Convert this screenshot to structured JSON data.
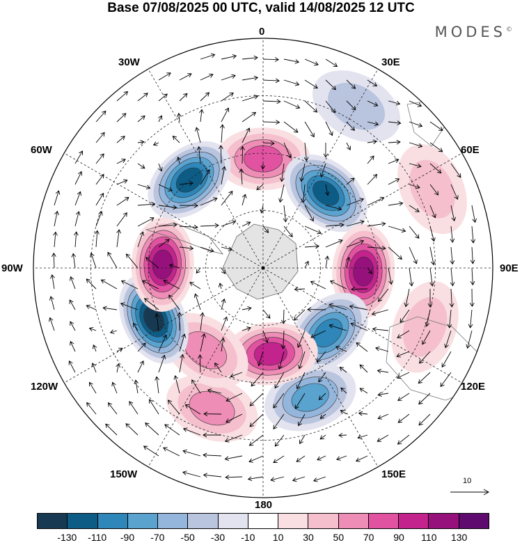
{
  "title": "Base 07/08/2025 00 UTC, valid 14/08/2025 12 UTC",
  "brand": {
    "name": "MODES",
    "mark": "©"
  },
  "meridian_labels": {
    "deg0": "0",
    "e30": "30E",
    "e60": "60E",
    "e90": "90E",
    "e120": "120E",
    "e150": "150E",
    "deg180": "180",
    "w150": "150W",
    "w120": "120W",
    "w90": "90W",
    "w60": "60W",
    "w30": "30W"
  },
  "reference_vector": {
    "label": "10"
  },
  "colorbar": {
    "colors": [
      "#173a52",
      "#0d5c86",
      "#2f86b8",
      "#5aa3cf",
      "#94b6dc",
      "#b9c4de",
      "#e2e3ef",
      "#ffffff",
      "#f9dfe2",
      "#f5bfcd",
      "#ee8db5",
      "#e153a1",
      "#c2238c",
      "#96117b",
      "#5e0a6e"
    ],
    "tick_labels": [
      "-130",
      "-110",
      "-90",
      "-70",
      "-50",
      "-30",
      "-10",
      "10",
      "30",
      "50",
      "70",
      "90",
      "110",
      "130"
    ]
  },
  "anomaly_centers": [
    {
      "lon": 0,
      "lat": -52,
      "value": 80
    },
    {
      "lon": 40,
      "lat": -56,
      "value": -120
    },
    {
      "lon": 92,
      "lat": -55,
      "value": 120
    },
    {
      "lon": 135,
      "lat": -58,
      "value": -95
    },
    {
      "lon": 160,
      "lat": -42,
      "value": -70
    },
    {
      "lon": 175,
      "lat": -60,
      "value": 85
    },
    {
      "lon": 200,
      "lat": -38,
      "value": 55
    },
    {
      "lon": 215,
      "lat": -55,
      "value": 45
    },
    {
      "lon": 245,
      "lat": -48,
      "value": -125
    },
    {
      "lon": 272,
      "lat": -55,
      "value": 110
    },
    {
      "lon": 320,
      "lat": -50,
      "value": -115
    },
    {
      "lon": 110,
      "lat": -30,
      "value": 35
    },
    {
      "lon": 30,
      "lat": -25,
      "value": -40
    },
    {
      "lon": 65,
      "lat": -25,
      "value": 25
    }
  ]
}
